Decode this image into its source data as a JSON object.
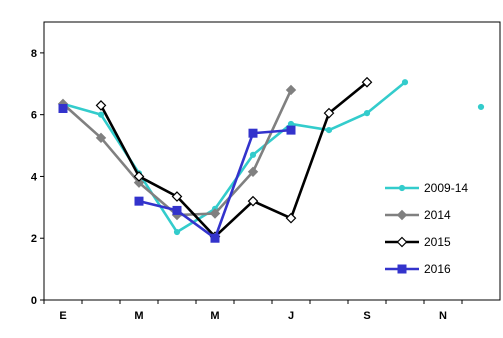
{
  "chart_data": {
    "type": "line",
    "title": "",
    "xlabel": "",
    "ylabel": "",
    "x_ticks": [
      "E",
      "M",
      "M",
      "J",
      "S",
      "N"
    ],
    "x_positions": [
      1,
      3,
      5,
      7,
      9,
      11
    ],
    "xlim": [
      0.5,
      12.5
    ],
    "y_ticks": [
      "0",
      "2",
      "4",
      "6",
      "8"
    ],
    "ylim": [
      0,
      9
    ],
    "grid": false,
    "legend_position": "right",
    "series": [
      {
        "name": "2009-14",
        "color": "#33cccc",
        "marker": "circle",
        "points": [
          [
            1,
            6.35
          ],
          [
            2,
            6.0
          ],
          [
            3,
            4.1
          ],
          [
            4,
            2.2
          ],
          [
            5,
            2.95
          ],
          [
            6,
            4.7
          ],
          [
            7,
            5.7
          ],
          [
            8,
            5.5
          ],
          [
            9,
            6.05
          ],
          [
            10,
            7.05
          ],
          [
            12,
            6.25
          ]
        ],
        "segments": [
          [
            0,
            9
          ]
        ]
      },
      {
        "name": "2014",
        "color": "#808080",
        "marker": "diamond",
        "points": [
          [
            1,
            6.35
          ],
          [
            2,
            5.25
          ],
          [
            3,
            3.8
          ],
          [
            4,
            2.75
          ],
          [
            5,
            2.8
          ],
          [
            6,
            4.15
          ],
          [
            7,
            6.8
          ]
        ],
        "segments": [
          [
            0,
            6
          ]
        ]
      },
      {
        "name": "2015",
        "color": "#000000",
        "marker": "diamond-open",
        "points": [
          [
            2,
            6.3
          ],
          [
            3,
            4.0
          ],
          [
            4,
            3.35
          ],
          [
            5,
            2.05
          ],
          [
            6,
            3.2
          ],
          [
            7,
            2.65
          ],
          [
            8,
            6.05
          ],
          [
            9,
            7.05
          ]
        ],
        "segments": [
          [
            0,
            7
          ]
        ]
      },
      {
        "name": "2016",
        "color": "#3333cc",
        "marker": "square",
        "points": [
          [
            1,
            6.2
          ],
          [
            3,
            3.2
          ],
          [
            4,
            2.9
          ],
          [
            5,
            2.0
          ],
          [
            6,
            5.4
          ],
          [
            7,
            5.5
          ]
        ],
        "segments": [
          [
            1,
            5
          ]
        ]
      }
    ]
  }
}
